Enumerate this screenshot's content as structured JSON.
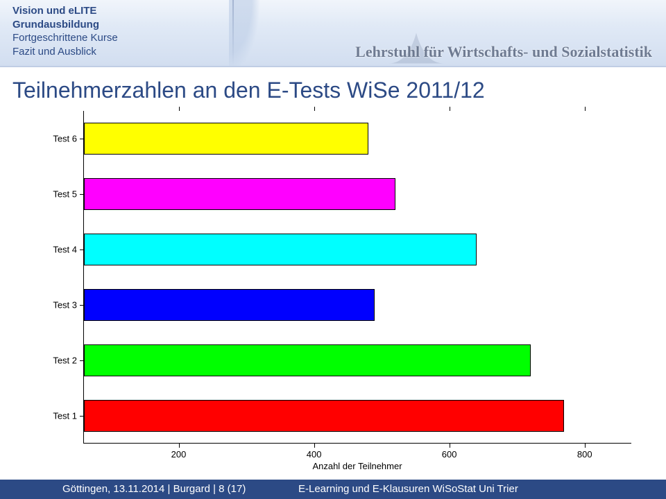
{
  "banner": {
    "nav": [
      {
        "label": "Vision und eLITE",
        "bold": true
      },
      {
        "label": "Grundausbildung",
        "bold": true
      },
      {
        "label": "Fortgeschrittene Kurse",
        "bold": false
      },
      {
        "label": "Fazit und Ausblick",
        "bold": false
      }
    ],
    "chair": "Lehrstuhl für Wirtschafts- und Sozialstatistik"
  },
  "title": "Teilnehmerzahlen an den E-Tests WiSe 2011/12",
  "chart": {
    "type": "bar-horizontal",
    "xlim": [
      60,
      870
    ],
    "xticks": [
      200,
      400,
      600,
      800
    ],
    "xaxis_label": "Anzahl der Teilnehmer",
    "categories": [
      "Test 6",
      "Test 5",
      "Test 4",
      "Test 3",
      "Test 2",
      "Test 1"
    ],
    "values": [
      480,
      520,
      640,
      490,
      720,
      770
    ],
    "bar_colors": [
      "#ffff00",
      "#ff00ff",
      "#00ffff",
      "#0000ff",
      "#00ff00",
      "#ff0000"
    ],
    "bar_border": "#000000",
    "background": "#ffffff",
    "category_fontsize": 13,
    "tick_fontsize": 13
  },
  "footer": {
    "left": "Göttingen,  13.11.2014  |  Burgard  |  8 (17)",
    "right": "E-Learning und E-Klausuren WiSoStat Uni Trier"
  }
}
